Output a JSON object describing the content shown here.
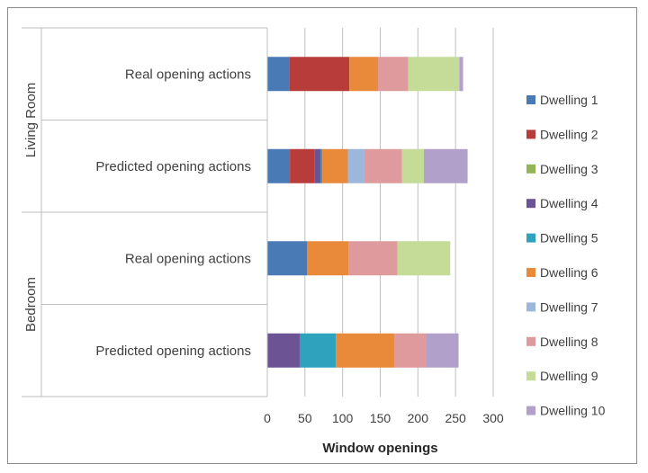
{
  "chart_data": {
    "type": "bar",
    "orientation": "horizontal",
    "stacked": true,
    "xlabel": "Window openings",
    "xlim": [
      0,
      300
    ],
    "xticks": [
      0,
      50,
      100,
      150,
      200,
      250,
      300
    ],
    "grid": true,
    "legend_position": "right",
    "groups": [
      {
        "label": "Living Room",
        "categories": [
          "Real opening actions",
          "Predicted opening actions"
        ]
      },
      {
        "label": "Bedroom",
        "categories": [
          "Real opening actions",
          "Predicted opening actions"
        ]
      }
    ],
    "rows": [
      {
        "group": "Living Room",
        "category": "Real opening actions"
      },
      {
        "group": "Living Room",
        "category": "Predicted opening actions"
      },
      {
        "group": "Bedroom",
        "category": "Real opening actions"
      },
      {
        "group": "Bedroom",
        "category": "Predicted opening actions"
      }
    ],
    "series": [
      {
        "name": "Dwelling 1",
        "color": "#4a7ab5",
        "values": [
          29,
          30,
          53,
          0
        ]
      },
      {
        "name": "Dwelling 2",
        "color": "#b83d3a",
        "values": [
          80,
          33,
          0,
          0
        ]
      },
      {
        "name": "Dwelling 3",
        "color": "#92b656",
        "values": [
          0,
          0,
          0,
          0
        ]
      },
      {
        "name": "Dwelling 4",
        "color": "#6b5394",
        "values": [
          0,
          8,
          0,
          43
        ]
      },
      {
        "name": "Dwelling 5",
        "color": "#2fa3bd",
        "values": [
          0,
          2,
          0,
          48
        ]
      },
      {
        "name": "Dwelling 6",
        "color": "#e9893a",
        "values": [
          38,
          34,
          55,
          78
        ]
      },
      {
        "name": "Dwelling 7",
        "color": "#9db6dc",
        "values": [
          0,
          22,
          0,
          0
        ]
      },
      {
        "name": "Dwelling 8",
        "color": "#de9a9c",
        "values": [
          40,
          50,
          65,
          42
        ]
      },
      {
        "name": "Dwelling 9",
        "color": "#c4dc98",
        "values": [
          68,
          29,
          70,
          0
        ]
      },
      {
        "name": "Dwelling 10",
        "color": "#b1a0ca",
        "values": [
          5,
          58,
          0,
          43
        ]
      }
    ]
  }
}
